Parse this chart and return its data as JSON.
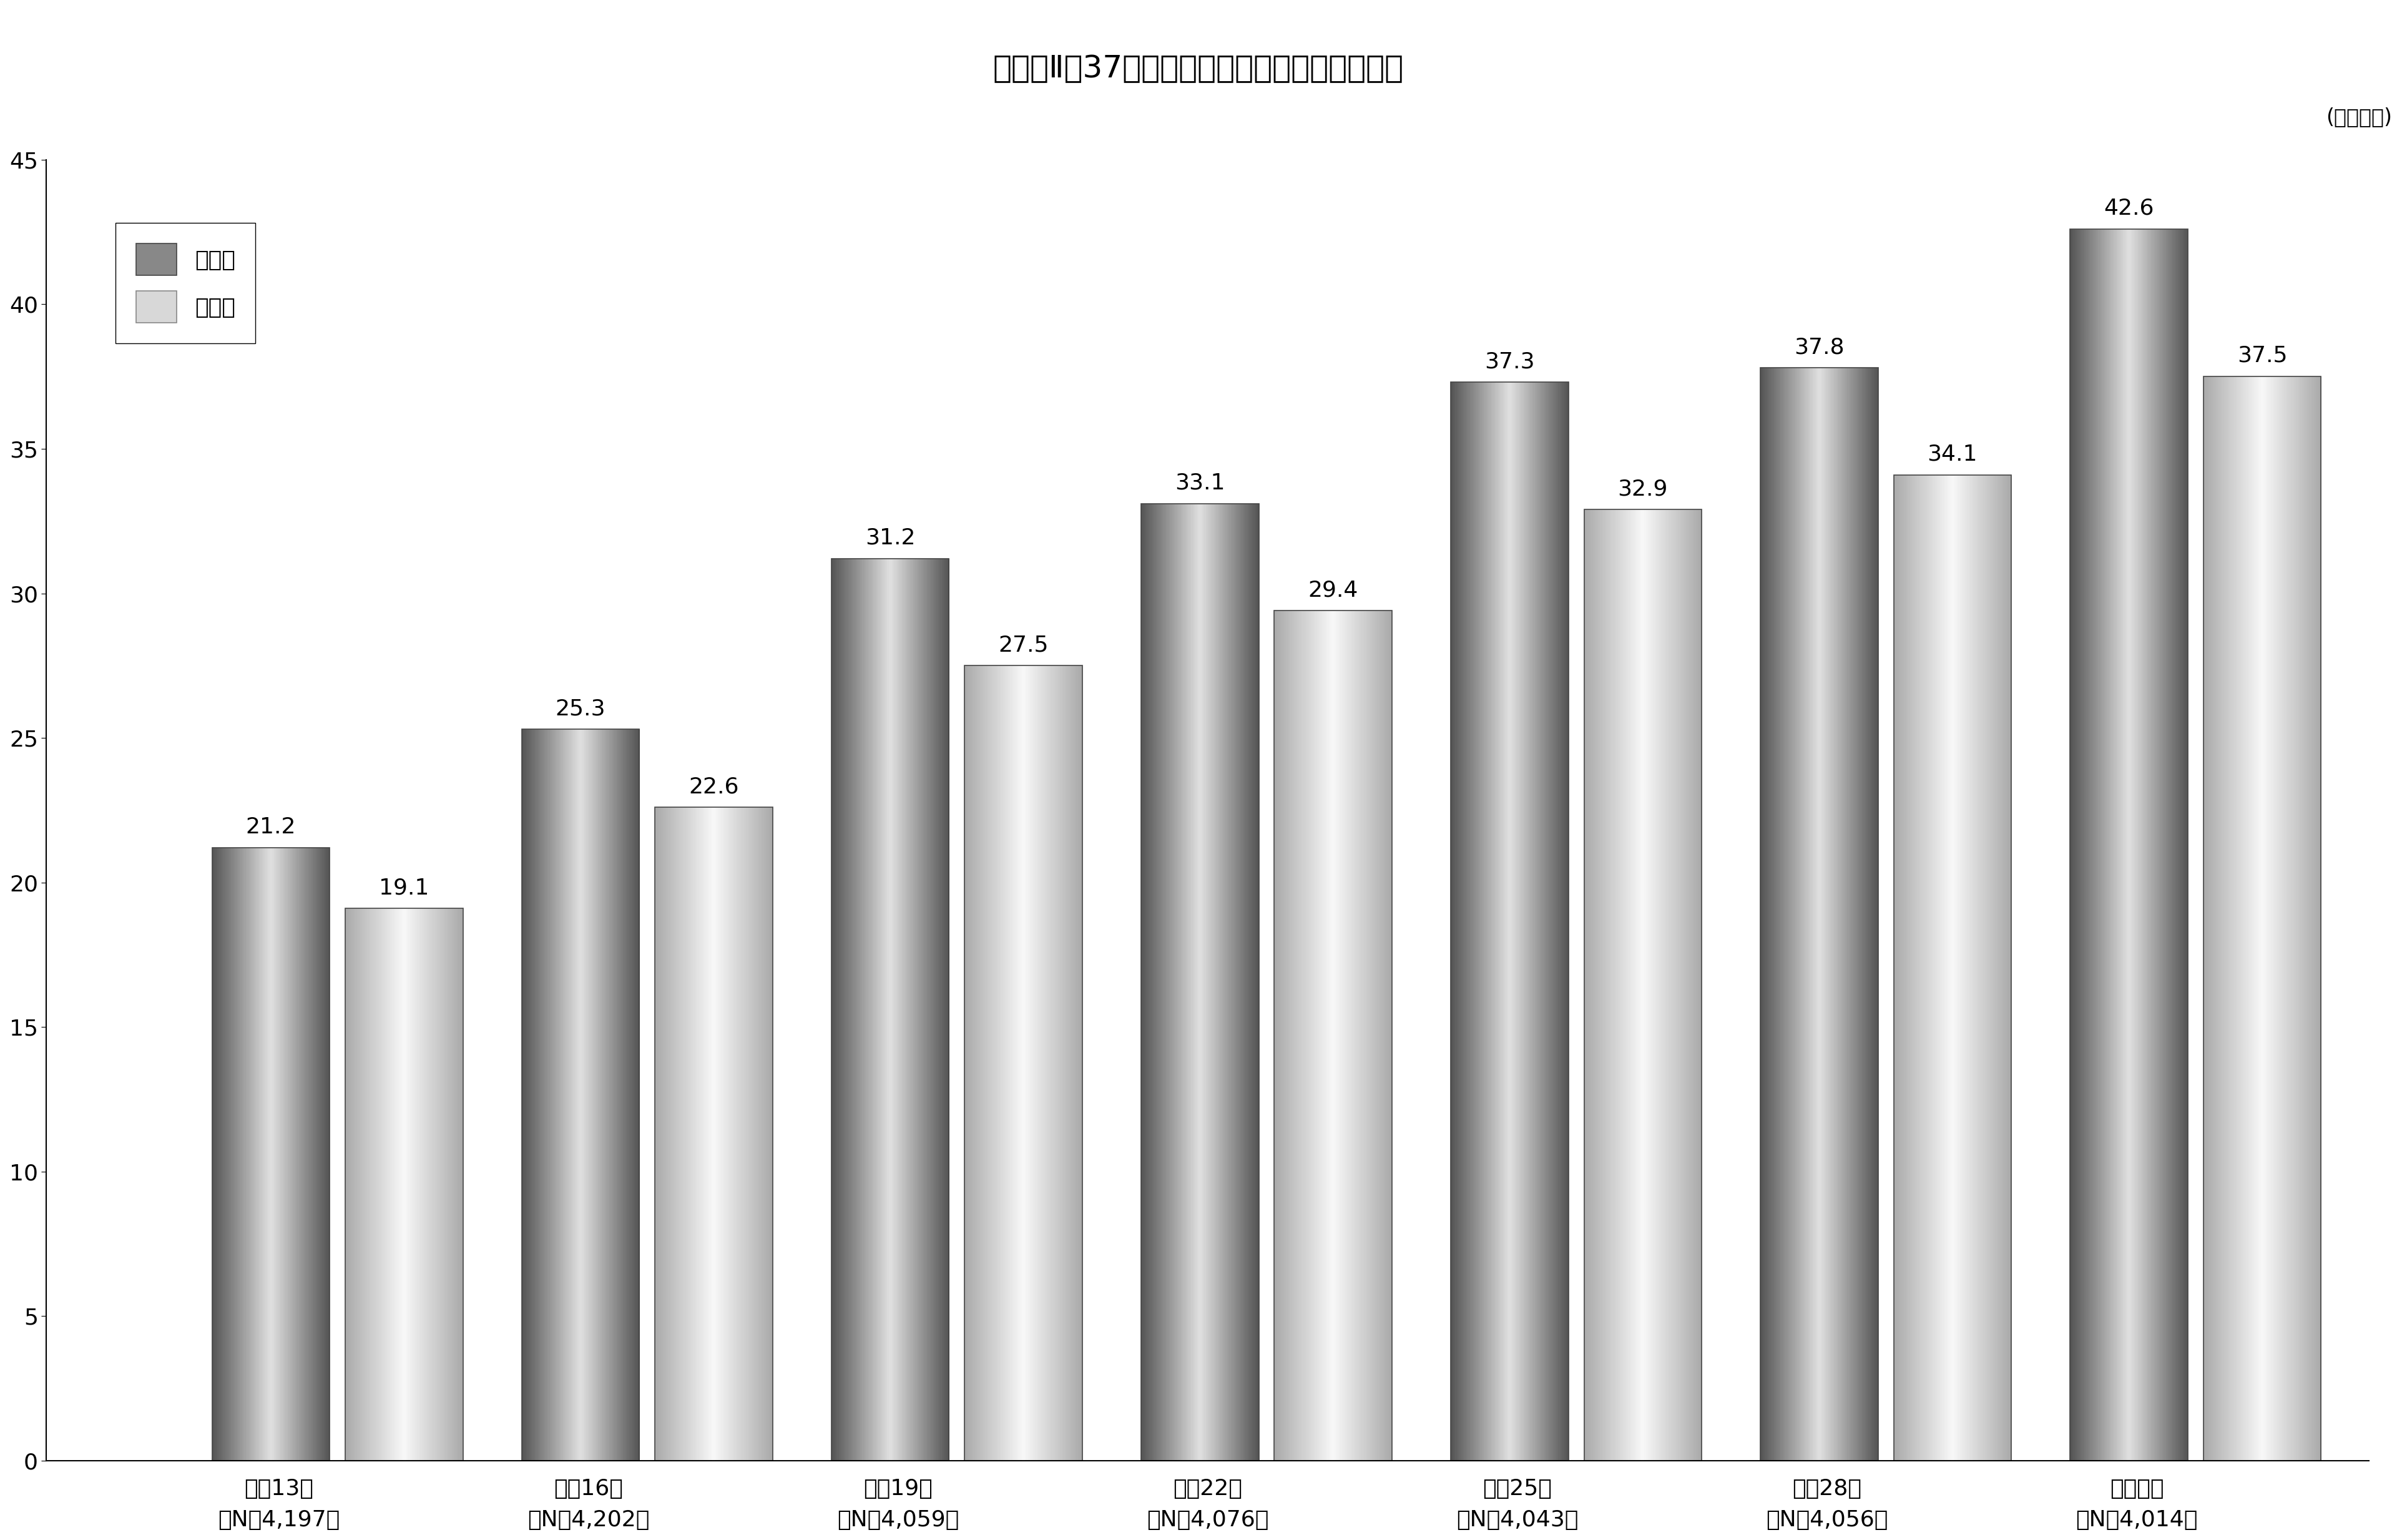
{
  "title": "「図表Ⅱ－37」　ガン保険・ガン特約の加入率",
  "unit_label": "(単位：％)",
  "categories": [
    "平成13年\n（N：4,197）",
    "平成16年\n（N：4,202）",
    "平成19年\n（N：4,059）",
    "平成22年\n（N：4,076）",
    "平成25年\n（N：4,043）",
    "平成28年\n（N：4,056）",
    "令和元年\n（N：4,014）"
  ],
  "series1_label": "全生保",
  "series2_label": "民　保",
  "series1_values": [
    21.2,
    25.3,
    31.2,
    33.1,
    37.3,
    37.8,
    42.6
  ],
  "series2_values": [
    19.1,
    22.6,
    27.5,
    29.4,
    32.9,
    34.1,
    37.5
  ],
  "ylim": [
    0,
    45
  ],
  "yticks": [
    0,
    5,
    10,
    15,
    20,
    25,
    30,
    35,
    40,
    45
  ],
  "dark1_edge": "#555555",
  "light1_center": "#e0e0e0",
  "dark2_edge": "#aaaaaa",
  "light2_center": "#f8f8f8",
  "title_fontsize": 36,
  "tick_fontsize": 26,
  "value_fontsize": 26,
  "legend_fontsize": 26,
  "unit_fontsize": 24,
  "background_color": "#ffffff"
}
